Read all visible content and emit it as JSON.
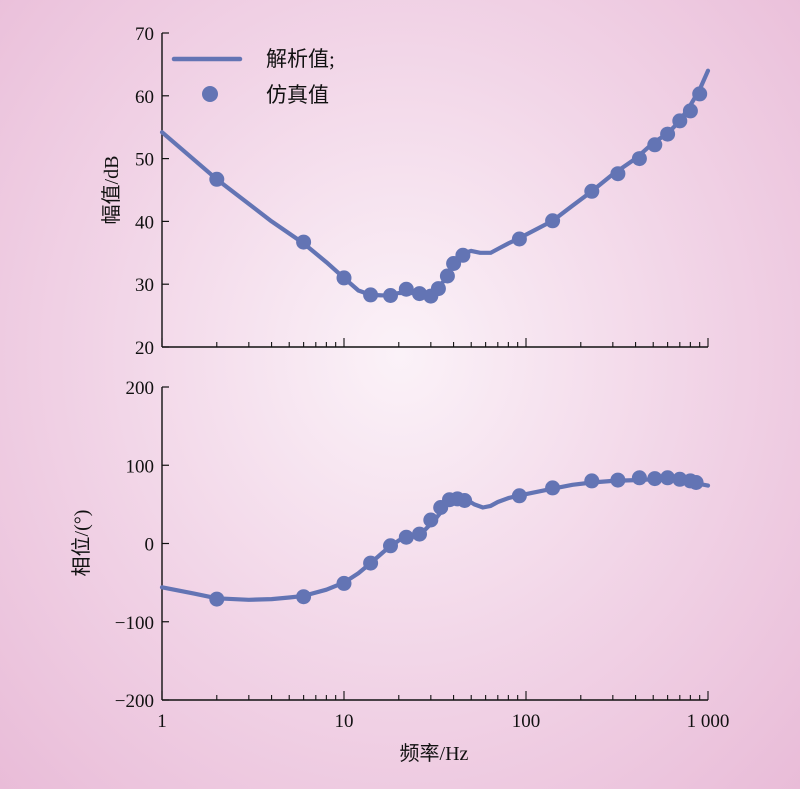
{
  "chart_data": [
    {
      "type": "line",
      "panel": "magnitude",
      "ylabel": "幅值/dB",
      "xlabel": "",
      "xscale": "log",
      "xlim": [
        1,
        1000
      ],
      "ylim": [
        20,
        70
      ],
      "yticks": [
        20,
        30,
        40,
        50,
        60,
        70
      ],
      "ytick_labels": [
        "20",
        "30",
        "40",
        "50",
        "60",
        "70"
      ],
      "legend": {
        "position": "top-left",
        "entries": [
          {
            "label": "解析值;",
            "marker": "line"
          },
          {
            "label": "仿真值",
            "marker": "dot"
          }
        ]
      },
      "series": [
        {
          "name": "解析值;",
          "style": "line",
          "points": [
            [
              1,
              54.2
            ],
            [
              2,
              46.7
            ],
            [
              4,
              40.0
            ],
            [
              6,
              36.5
            ],
            [
              8,
              33.5
            ],
            [
              10,
              31.0
            ],
            [
              12,
              29.0
            ],
            [
              14,
              28.3
            ],
            [
              17,
              28.2
            ],
            [
              20,
              28.6
            ],
            [
              24,
              28.6
            ],
            [
              28,
              28.2
            ],
            [
              32,
              29.0
            ],
            [
              36,
              30.8
            ],
            [
              40,
              33.3
            ],
            [
              44,
              34.8
            ],
            [
              50,
              35.3
            ],
            [
              56,
              35.0
            ],
            [
              64,
              35.0
            ],
            [
              72,
              35.8
            ],
            [
              80,
              36.5
            ],
            [
              90,
              37.2
            ],
            [
              110,
              38.5
            ],
            [
              140,
              40.1
            ],
            [
              180,
              42.5
            ],
            [
              230,
              44.8
            ],
            [
              300,
              47.5
            ],
            [
              400,
              50.0
            ],
            [
              500,
              52.5
            ],
            [
              600,
              54.0
            ],
            [
              700,
              56.0
            ],
            [
              800,
              58.5
            ],
            [
              900,
              61.0
            ],
            [
              1000,
              64.0
            ]
          ]
        },
        {
          "name": "仿真值",
          "style": "scatter",
          "points": [
            [
              2,
              46.7
            ],
            [
              6,
              36.7
            ],
            [
              10,
              31.0
            ],
            [
              14,
              28.3
            ],
            [
              18,
              28.2
            ],
            [
              22,
              29.2
            ],
            [
              26,
              28.5
            ],
            [
              30,
              28.1
            ],
            [
              33,
              29.3
            ],
            [
              37,
              31.3
            ],
            [
              40,
              33.3
            ],
            [
              45,
              34.6
            ],
            [
              92,
              37.2
            ],
            [
              140,
              40.1
            ],
            [
              230,
              44.8
            ],
            [
              320,
              47.6
            ],
            [
              420,
              50.0
            ],
            [
              510,
              52.2
            ],
            [
              600,
              53.9
            ],
            [
              700,
              56.0
            ],
            [
              800,
              57.6
            ],
            [
              900,
              60.3
            ]
          ]
        }
      ]
    },
    {
      "type": "line",
      "panel": "phase",
      "ylabel": "相位/(°)",
      "xlabel": "频率/Hz",
      "xscale": "log",
      "xlim": [
        1,
        1000
      ],
      "ylim": [
        -200,
        200
      ],
      "yticks": [
        -200,
        -100,
        0,
        100,
        200
      ],
      "ytick_labels": [
        "−200",
        "−100",
        "0",
        "100",
        "200"
      ],
      "xticks": [
        1,
        10,
        100,
        1000
      ],
      "xtick_labels": [
        "1",
        "10",
        "100",
        "1 000"
      ],
      "series": [
        {
          "name": "解析值;",
          "style": "line",
          "points": [
            [
              1,
              -56
            ],
            [
              1.5,
              -64
            ],
            [
              2,
              -70
            ],
            [
              3,
              -72
            ],
            [
              4,
              -71
            ],
            [
              5,
              -69
            ],
            [
              6,
              -67
            ],
            [
              8,
              -59
            ],
            [
              10,
              -50
            ],
            [
              12,
              -38
            ],
            [
              14,
              -25
            ],
            [
              17,
              -8
            ],
            [
              20,
              4
            ],
            [
              24,
              10
            ],
            [
              28,
              18
            ],
            [
              32,
              32
            ],
            [
              36,
              47
            ],
            [
              40,
              55
            ],
            [
              44,
              57
            ],
            [
              48,
              55
            ],
            [
              52,
              50
            ],
            [
              58,
              46
            ],
            [
              64,
              48
            ],
            [
              70,
              53
            ],
            [
              80,
              58
            ],
            [
              90,
              61
            ],
            [
              110,
              65
            ],
            [
              140,
              70
            ],
            [
              180,
              75
            ],
            [
              230,
              78
            ],
            [
              300,
              80
            ],
            [
              400,
              81
            ],
            [
              500,
              82
            ],
            [
              600,
              82
            ],
            [
              700,
              80
            ],
            [
              800,
              78
            ],
            [
              900,
              76
            ],
            [
              1000,
              74
            ]
          ]
        },
        {
          "name": "仿真值",
          "style": "scatter",
          "points": [
            [
              2,
              -71
            ],
            [
              6,
              -68
            ],
            [
              10,
              -51
            ],
            [
              14,
              -25
            ],
            [
              18,
              -3
            ],
            [
              22,
              8
            ],
            [
              26,
              12
            ],
            [
              30,
              30
            ],
            [
              34,
              46
            ],
            [
              38,
              56
            ],
            [
              42,
              57
            ],
            [
              46,
              55
            ],
            [
              92,
              61
            ],
            [
              140,
              71
            ],
            [
              230,
              80
            ],
            [
              320,
              81
            ],
            [
              420,
              84
            ],
            [
              510,
              83
            ],
            [
              600,
              84
            ],
            [
              700,
              82
            ],
            [
              800,
              80
            ],
            [
              860,
              78
            ]
          ]
        }
      ]
    }
  ]
}
